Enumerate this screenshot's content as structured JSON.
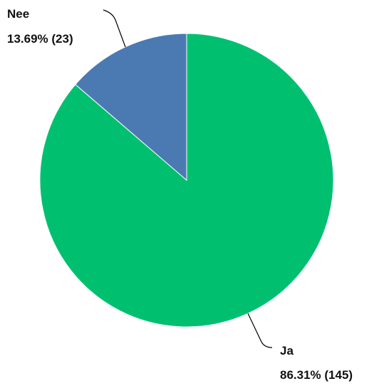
{
  "chart_data": {
    "type": "pie",
    "title": "",
    "series": [
      {
        "values": [
          145,
          23
        ],
        "percentages": [
          "86.31%",
          "13.69%"
        ],
        "categories": [
          "Ja",
          "Nee"
        ]
      }
    ],
    "slices": [
      {
        "label": "Ja",
        "value": 145,
        "percent_label": "86.31% (145)",
        "color": "#00c070"
      },
      {
        "label": "Nee",
        "value": 23,
        "percent_label": "13.69% (23)",
        "color": "#4b7ab2"
      }
    ],
    "legend": "none",
    "start_angle": "12 o'clock, clockwise"
  }
}
